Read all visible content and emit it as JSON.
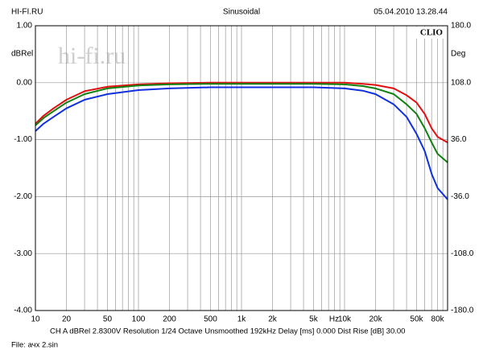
{
  "chart_data": {
    "type": "line",
    "header_left": "HI-FI.RU",
    "title": "Sinusoidal",
    "timestamp": "05.04.2010 13.28.44",
    "brand": "CLIO",
    "watermark": "hi-fi.ru",
    "ylabel": "dBRel",
    "y2label": "Deg",
    "x_unit": "Hz",
    "footer": "CH A   dBRel 2.8300V   Resolution 1/24 Octave   Unsmoothed   192kHz   Delay [ms] 0.000   Dist Rise [dB] 30.00",
    "file": "File: ачх 2.sin",
    "log_x": true,
    "grid": true,
    "xlim": [
      10,
      100000
    ],
    "xticks": [
      10,
      20,
      50,
      100,
      200,
      500,
      {
        "value": 1000,
        "label": "1k"
      },
      {
        "value": 2000,
        "label": "2k"
      },
      {
        "value": 5000,
        "label": "5k"
      },
      {
        "value": 10000,
        "label": "10k"
      },
      {
        "value": 20000,
        "label": "20k"
      },
      {
        "value": 50000,
        "label": "50k"
      },
      {
        "value": 80000,
        "label": "80k"
      }
    ],
    "xgrid": [
      20,
      30,
      40,
      50,
      60,
      70,
      80,
      90,
      100,
      200,
      300,
      400,
      500,
      600,
      700,
      800,
      900,
      1000,
      2000,
      3000,
      4000,
      5000,
      6000,
      7000,
      8000,
      9000,
      10000,
      20000,
      30000,
      40000,
      50000,
      60000,
      70000,
      80000,
      90000
    ],
    "ylim": [
      -4,
      1
    ],
    "yticks": [
      {
        "value": 1,
        "label": "1.00"
      },
      {
        "value": 0,
        "label": "0.00"
      },
      {
        "value": -1,
        "label": "-1.00"
      },
      {
        "value": -2,
        "label": "-2.00"
      },
      {
        "value": -3,
        "label": "-3.00"
      },
      {
        "value": -4,
        "label": "-4.00"
      }
    ],
    "y2lim": [
      -180,
      180
    ],
    "y2ticks": [
      {
        "value": 180,
        "label": "180.0"
      },
      {
        "value": 108,
        "label": "108.0"
      },
      {
        "value": 36,
        "label": "36.0"
      },
      {
        "value": -36,
        "label": "-36.0"
      },
      {
        "value": -108,
        "label": "-108.0"
      },
      {
        "value": -180,
        "label": "-180.0"
      }
    ],
    "x": [
      10,
      12,
      15,
      20,
      30,
      50,
      100,
      200,
      500,
      1000,
      2000,
      5000,
      10000,
      15000,
      20000,
      30000,
      40000,
      50000,
      60000,
      70000,
      80000,
      100000
    ],
    "series": [
      {
        "name": "red",
        "color": "#e01010",
        "values": [
          -0.72,
          -0.58,
          -0.45,
          -0.3,
          -0.15,
          -0.07,
          -0.03,
          -0.01,
          0,
          0,
          0,
          0,
          0,
          -0.02,
          -0.04,
          -0.1,
          -0.22,
          -0.35,
          -0.55,
          -0.8,
          -0.95,
          -1.05
        ]
      },
      {
        "name": "green",
        "color": "#108010",
        "values": [
          -0.75,
          -0.62,
          -0.5,
          -0.35,
          -0.2,
          -0.1,
          -0.05,
          -0.03,
          -0.02,
          -0.02,
          -0.02,
          -0.02,
          -0.03,
          -0.06,
          -0.1,
          -0.2,
          -0.38,
          -0.55,
          -0.8,
          -1.05,
          -1.25,
          -1.4
        ]
      },
      {
        "name": "blue",
        "color": "#1030e0",
        "values": [
          -0.85,
          -0.72,
          -0.6,
          -0.45,
          -0.3,
          -0.2,
          -0.13,
          -0.1,
          -0.08,
          -0.08,
          -0.08,
          -0.08,
          -0.1,
          -0.14,
          -0.2,
          -0.38,
          -0.6,
          -0.9,
          -1.2,
          -1.6,
          -1.85,
          -2.05
        ]
      }
    ]
  }
}
